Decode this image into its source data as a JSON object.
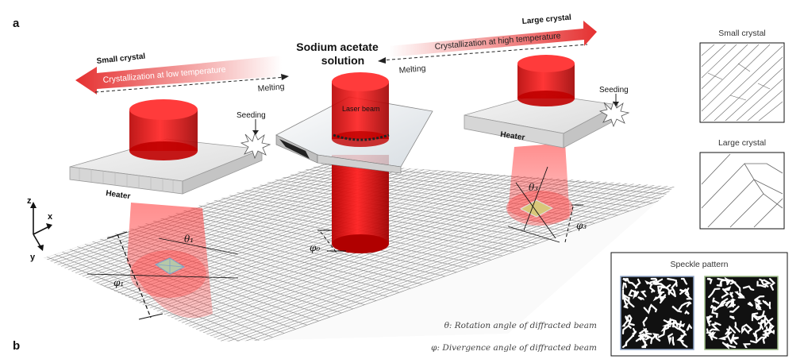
{
  "panel_labels": {
    "a": "a",
    "b": "b"
  },
  "center_title": {
    "line1": "Sodium acetate",
    "line2": "solution"
  },
  "left_arrow": {
    "title": "Small crystal",
    "text": "Crystallization at low  temperature",
    "melting": "Melting"
  },
  "right_arrow": {
    "title": "Large crystal",
    "text": "Crystallization at high temperature",
    "melting": "Melting"
  },
  "labels": {
    "laser_beam": "Laser beam",
    "seeding_left": "Seeding",
    "seeding_right": "Seeding",
    "heater_left": "Heater",
    "heater_right": "Heater"
  },
  "angles": {
    "theta1": "θ₁",
    "phi1": "φ₁",
    "phi0": "φ₀",
    "theta3": "θ₃",
    "phi3": "φ₃"
  },
  "axes": {
    "z": "z",
    "x": "x",
    "y": "y"
  },
  "side_panels": {
    "small_crystal": "Small crystal",
    "large_crystal": "Large crystal",
    "speckle": "Speckle pattern"
  },
  "legend": {
    "theta": "θ: Rotation angle of diffracted beam",
    "phi": "φ: Divergence angle of diffracted beam"
  },
  "colors": {
    "beam": "#e01010",
    "arrow_red": "#e53030",
    "grid": "#8a8a8a",
    "speckle_left_border": "#8fa6c8",
    "speckle_right_border": "#9fbf8a"
  }
}
